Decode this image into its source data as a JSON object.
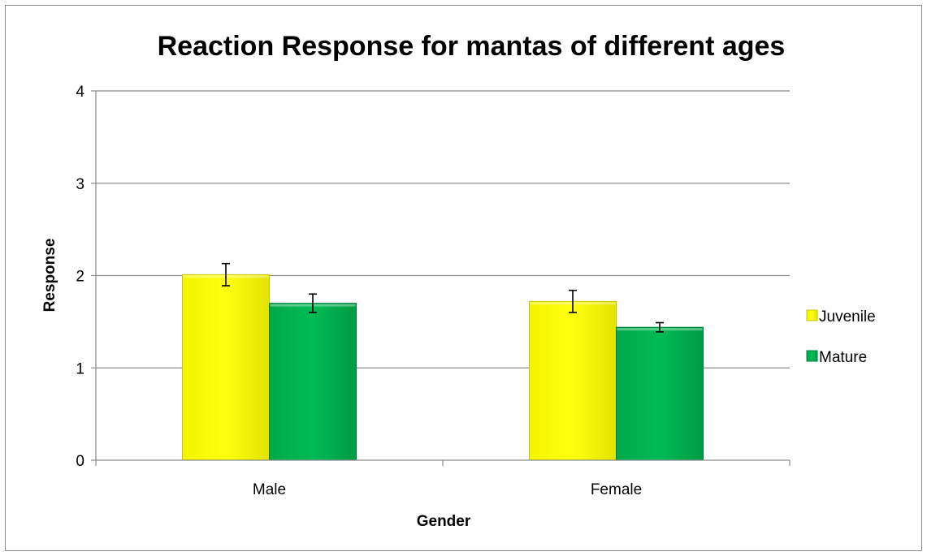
{
  "chart_data": {
    "type": "bar",
    "title": "Reaction Response for mantas of different ages",
    "xlabel": "Gender",
    "ylabel": "Response",
    "categories": [
      "Male",
      "Female"
    ],
    "ylim": [
      0,
      4
    ],
    "yticks": [
      0,
      1,
      2,
      3,
      4
    ],
    "grid": true,
    "legend_position": "right",
    "series": [
      {
        "name": "Juvenile",
        "values": [
          2.01,
          1.72
        ],
        "errors": [
          0.12,
          0.12
        ],
        "color": "#ffff00",
        "edge": "#c8c800"
      },
      {
        "name": "Mature",
        "values": [
          1.7,
          1.44
        ],
        "errors": [
          0.1,
          0.05
        ],
        "color": "#00b050",
        "edge": "#00803a"
      }
    ]
  }
}
